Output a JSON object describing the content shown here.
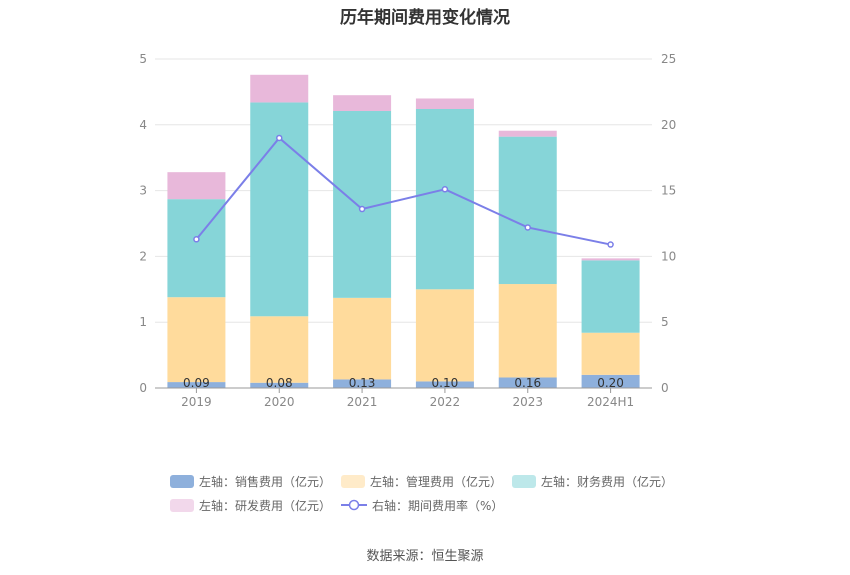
{
  "chart_data": {
    "type": "bar",
    "title": "历年期间费用变化情况",
    "categories": [
      "2019",
      "2020",
      "2021",
      "2022",
      "2023",
      "2024H1"
    ],
    "series": [
      {
        "name": "左轴：销售费用（亿元）",
        "axis": "left",
        "kind": "stacked-bar",
        "color": "#8eb0dc",
        "values": [
          0.09,
          0.08,
          0.13,
          0.1,
          0.16,
          0.2
        ],
        "data_labels": [
          "0.09",
          "0.08",
          "0.13",
          "0.10",
          "0.16",
          "0.20"
        ]
      },
      {
        "name": "左轴：管理费用（亿元）",
        "axis": "left",
        "kind": "stacked-bar",
        "color": "#ffdb9c",
        "values": [
          1.29,
          1.01,
          1.24,
          1.4,
          1.42,
          0.64
        ]
      },
      {
        "name": "左轴：财务费用（亿元）",
        "axis": "left",
        "kind": "stacked-bar",
        "color": "#86d5d8",
        "values": [
          1.49,
          3.25,
          2.84,
          2.74,
          2.24,
          1.1
        ]
      },
      {
        "name": "左轴：研发费用（亿元）",
        "axis": "left",
        "kind": "stacked-bar",
        "color": "#e8b8da",
        "values": [
          0.41,
          0.42,
          0.24,
          0.16,
          0.09,
          0.03
        ]
      },
      {
        "name": "右轴：期间费用率（%）",
        "axis": "right",
        "kind": "line",
        "color": "#7b7fe8",
        "values": [
          11.3,
          19.0,
          13.6,
          15.1,
          12.2,
          10.9
        ]
      }
    ],
    "y_left": {
      "min": 0,
      "max": 5,
      "ticks": [
        "0",
        "1",
        "2",
        "3",
        "4",
        "5"
      ]
    },
    "y_right": {
      "min": 0,
      "max": 25,
      "ticks": [
        "0",
        "5",
        "10",
        "15",
        "20",
        "25"
      ]
    },
    "grid": true,
    "legend_position": "bottom"
  },
  "source": "数据来源：恒生聚源"
}
